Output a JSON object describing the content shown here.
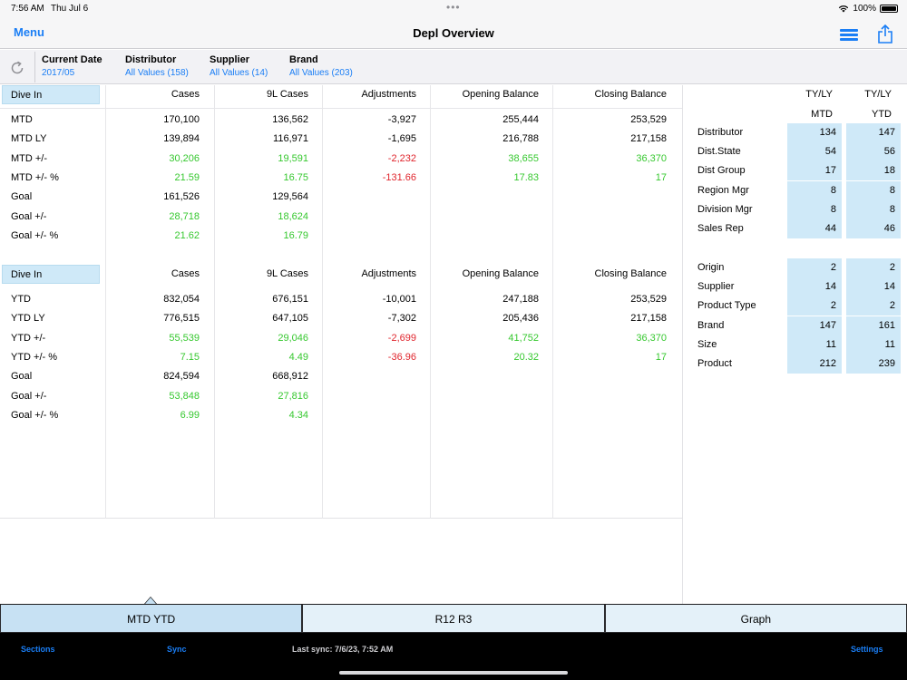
{
  "status_bar": {
    "time": "7:56 AM",
    "date": "Thu Jul 6",
    "dots": "•••",
    "battery": "100%"
  },
  "nav": {
    "menu_label": "Menu",
    "title": "Depl Overview"
  },
  "filters": [
    {
      "label": "Current Date",
      "value": "2017/05"
    },
    {
      "label": "Distributor",
      "value": "All Values (158)"
    },
    {
      "label": "Supplier",
      "value": "All Values (14)"
    },
    {
      "label": "Brand",
      "value": "All Values (203)"
    }
  ],
  "main": {
    "dive_in_label": "Dive In",
    "columns": [
      "Cases",
      "9L Cases",
      "Adjustments",
      "Opening Balance",
      "Closing Balance"
    ],
    "mtd_rows": [
      {
        "label": "MTD",
        "values": [
          "170,100",
          "136,562",
          "-3,927",
          "255,444",
          "253,529"
        ],
        "colors": [
          "",
          "",
          "",
          "",
          ""
        ]
      },
      {
        "label": "MTD LY",
        "values": [
          "139,894",
          "116,971",
          "-1,695",
          "216,788",
          "217,158"
        ],
        "colors": [
          "",
          "",
          "",
          "",
          ""
        ]
      },
      {
        "label": "MTD +/-",
        "values": [
          "30,206",
          "19,591",
          "-2,232",
          "38,655",
          "36,370"
        ],
        "colors": [
          "green",
          "green",
          "red",
          "green",
          "green"
        ]
      },
      {
        "label": "MTD +/- %",
        "values": [
          "21.59",
          "16.75",
          "-131.66",
          "17.83",
          "17"
        ],
        "colors": [
          "green",
          "green",
          "red",
          "green",
          "green"
        ]
      },
      {
        "label": "Goal",
        "values": [
          "161,526",
          "129,564",
          "",
          "",
          ""
        ],
        "colors": [
          "",
          "",
          "",
          "",
          ""
        ]
      },
      {
        "label": "Goal +/-",
        "values": [
          "28,718",
          "18,624",
          "",
          "",
          ""
        ],
        "colors": [
          "green",
          "green",
          "",
          "",
          ""
        ]
      },
      {
        "label": "Goal +/- %",
        "values": [
          "21.62",
          "16.79",
          "",
          "",
          ""
        ],
        "colors": [
          "green",
          "green",
          "",
          "",
          ""
        ]
      }
    ],
    "ytd_rows": [
      {
        "label": "YTD",
        "values": [
          "832,054",
          "676,151",
          "-10,001",
          "247,188",
          "253,529"
        ],
        "colors": [
          "",
          "",
          "",
          "",
          ""
        ]
      },
      {
        "label": "YTD LY",
        "values": [
          "776,515",
          "647,105",
          "-7,302",
          "205,436",
          "217,158"
        ],
        "colors": [
          "",
          "",
          "",
          "",
          ""
        ]
      },
      {
        "label": "YTD +/-",
        "values": [
          "55,539",
          "29,046",
          "-2,699",
          "41,752",
          "36,370"
        ],
        "colors": [
          "green",
          "green",
          "red",
          "green",
          "green"
        ]
      },
      {
        "label": "YTD +/- %",
        "values": [
          "7.15",
          "4.49",
          "-36.96",
          "20.32",
          "17"
        ],
        "colors": [
          "green",
          "green",
          "red",
          "green",
          "green"
        ]
      },
      {
        "label": "Goal",
        "values": [
          "824,594",
          "668,912",
          "",
          "",
          ""
        ],
        "colors": [
          "",
          "",
          "",
          "",
          ""
        ]
      },
      {
        "label": "Goal +/-",
        "values": [
          "53,848",
          "27,816",
          "",
          "",
          ""
        ],
        "colors": [
          "green",
          "green",
          "",
          "",
          ""
        ]
      },
      {
        "label": "Goal +/- %",
        "values": [
          "6.99",
          "4.34",
          "",
          "",
          ""
        ],
        "colors": [
          "green",
          "green",
          "",
          "",
          ""
        ]
      }
    ]
  },
  "right_panel": {
    "headers": [
      {
        "top": "TY/LY",
        "bottom": "MTD"
      },
      {
        "top": "TY/LY",
        "bottom": "YTD"
      }
    ],
    "group1": [
      {
        "label": "Distributor",
        "mtd": "134",
        "ytd": "147"
      },
      {
        "label": "Dist.State",
        "mtd": "54",
        "ytd": "56"
      },
      {
        "label": "Dist Group",
        "mtd": "17",
        "ytd": "18"
      },
      {
        "label": "Region Mgr",
        "mtd": "8",
        "ytd": "8"
      },
      {
        "label": "Division Mgr",
        "mtd": "8",
        "ytd": "8"
      },
      {
        "label": "Sales Rep",
        "mtd": "44",
        "ytd": "46"
      }
    ],
    "group2": [
      {
        "label": "Origin",
        "mtd": "2",
        "ytd": "2"
      },
      {
        "label": "Supplier",
        "mtd": "14",
        "ytd": "14"
      },
      {
        "label": "Product Type",
        "mtd": "2",
        "ytd": "2"
      },
      {
        "label": "Brand",
        "mtd": "147",
        "ytd": "161"
      },
      {
        "label": "Size",
        "mtd": "11",
        "ytd": "11"
      },
      {
        "label": "Product",
        "mtd": "212",
        "ytd": "239"
      }
    ]
  },
  "tabs": [
    "MTD YTD",
    "R12 R3",
    "Graph"
  ],
  "active_tab": 0,
  "bottom_bar": {
    "sections": "Sections",
    "sync": "Sync",
    "last_sync": "Last sync: 7/6/23, 7:52 AM",
    "settings": "Settings"
  },
  "colors": {
    "accent": "#1a7ef5",
    "positive": "#36c82f",
    "negative": "#e0252d",
    "highlight": "#cfe9f8"
  }
}
